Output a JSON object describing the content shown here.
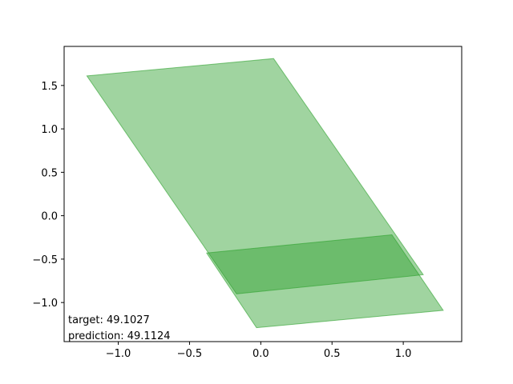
{
  "chart_data": {
    "type": "area",
    "title": "",
    "xlabel": "",
    "ylabel": "",
    "xlim": [
      -1.38,
      1.41
    ],
    "ylim": [
      -1.45,
      1.95
    ],
    "grid": false,
    "xticks": [
      -1.0,
      -0.5,
      0.0,
      0.5,
      1.0
    ],
    "xtick_labels": [
      "−1.0",
      "−0.5",
      "0.0",
      "0.5",
      "1.0"
    ],
    "yticks": [
      -1.0,
      -0.5,
      0.0,
      0.5,
      1.0,
      1.5
    ],
    "ytick_labels": [
      "−1.0",
      "−0.5",
      "0.0",
      "0.5",
      "1.0",
      "1.5"
    ],
    "polygons": [
      {
        "fill": "#2ca02c",
        "opacity": 0.45,
        "points": [
          [
            -1.22,
            1.61
          ],
          [
            0.09,
            1.81
          ],
          [
            1.14,
            -0.68
          ],
          [
            -0.17,
            -0.9
          ]
        ]
      },
      {
        "fill": "#2ca02c",
        "opacity": 0.45,
        "points": [
          [
            -0.38,
            -0.43
          ],
          [
            0.92,
            -0.22
          ],
          [
            1.28,
            -1.09
          ],
          [
            -0.03,
            -1.29
          ]
        ]
      }
    ],
    "annotations": [
      "target: 49.1027",
      "prediction: 49.1124"
    ]
  }
}
